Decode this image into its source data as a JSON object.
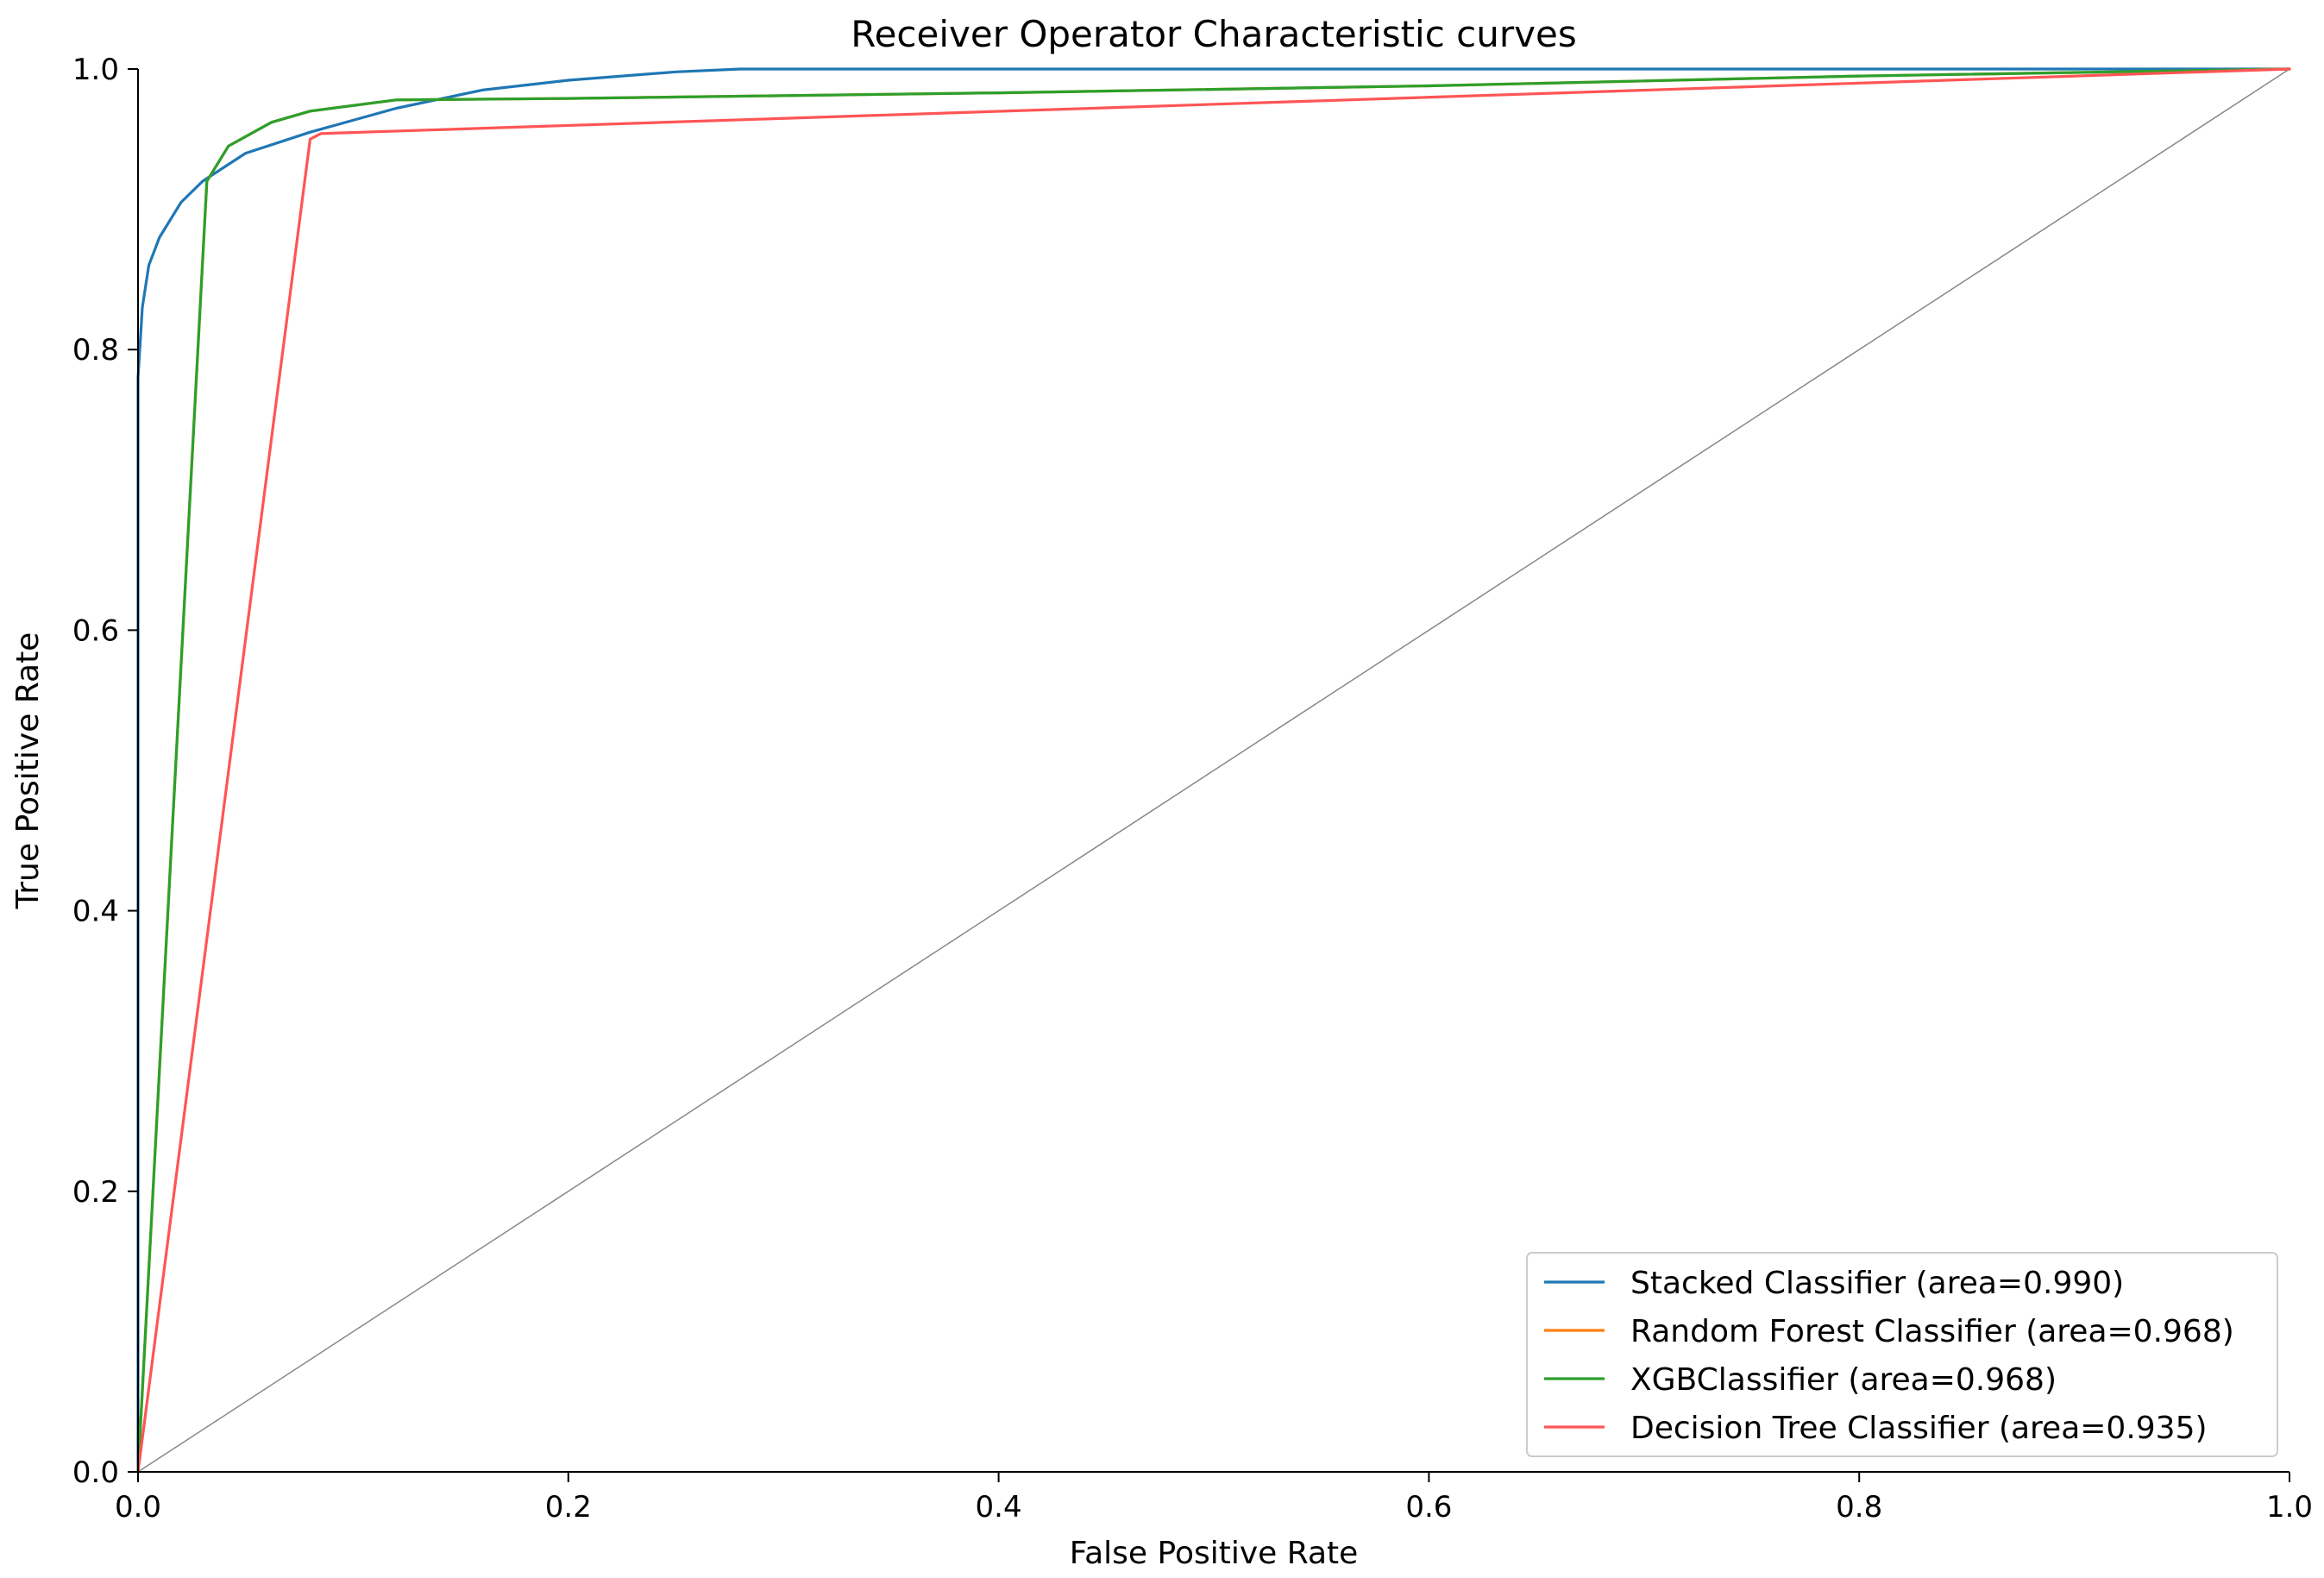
{
  "chart_data": {
    "type": "line",
    "title": "Receiver Operator Characteristic curves",
    "xlabel": "False Positive Rate",
    "ylabel": "True Positive Rate",
    "xlim": [
      0.0,
      1.0
    ],
    "ylim": [
      0.0,
      1.0
    ],
    "xticks": [
      "0.0",
      "0.2",
      "0.4",
      "0.6",
      "0.8",
      "1.0"
    ],
    "yticks": [
      "0.0",
      "0.2",
      "0.4",
      "0.6",
      "0.8",
      "1.0"
    ],
    "grid": false,
    "legend_position": "bottom-right",
    "reference_line": {
      "x": [
        0,
        1
      ],
      "y": [
        0,
        1
      ],
      "color": "#888888"
    },
    "series": [
      {
        "name": "Stacked Classifier  (area=0.990)",
        "color": "#1f77b4",
        "x": [
          0,
          0.0,
          0.002,
          0.005,
          0.01,
          0.02,
          0.03,
          0.05,
          0.08,
          0.12,
          0.16,
          0.2,
          0.25,
          0.28,
          0.35,
          0.5,
          1.0
        ],
        "y": [
          0,
          0.78,
          0.83,
          0.86,
          0.88,
          0.905,
          0.92,
          0.94,
          0.955,
          0.972,
          0.985,
          0.992,
          0.998,
          1.0,
          1.0,
          1.0,
          1.0
        ]
      },
      {
        "name": "Random Forest Classifier  (area=0.968)",
        "color": "#ff7f0e",
        "x": [
          0,
          0.032,
          0.042,
          0.062,
          0.08,
          0.12,
          0.2,
          0.4,
          0.6,
          0.8,
          1.0
        ],
        "y": [
          0,
          0.92,
          0.945,
          0.962,
          0.97,
          0.978,
          0.979,
          0.983,
          0.988,
          0.995,
          1.0
        ]
      },
      {
        "name": "XGBClassifier  (area=0.968)",
        "color": "#2ca02c",
        "x": [
          0,
          0.032,
          0.042,
          0.062,
          0.08,
          0.12,
          0.2,
          0.4,
          0.6,
          0.8,
          1.0
        ],
        "y": [
          0,
          0.92,
          0.945,
          0.962,
          0.97,
          0.978,
          0.979,
          0.983,
          0.988,
          0.995,
          1.0
        ]
      },
      {
        "name": "Decision Tree Classifier  (area=0.935)",
        "color": "#ff5555",
        "x": [
          0,
          0.08,
          0.085,
          1.0
        ],
        "y": [
          0,
          0.95,
          0.954,
          1.0
        ]
      }
    ]
  }
}
